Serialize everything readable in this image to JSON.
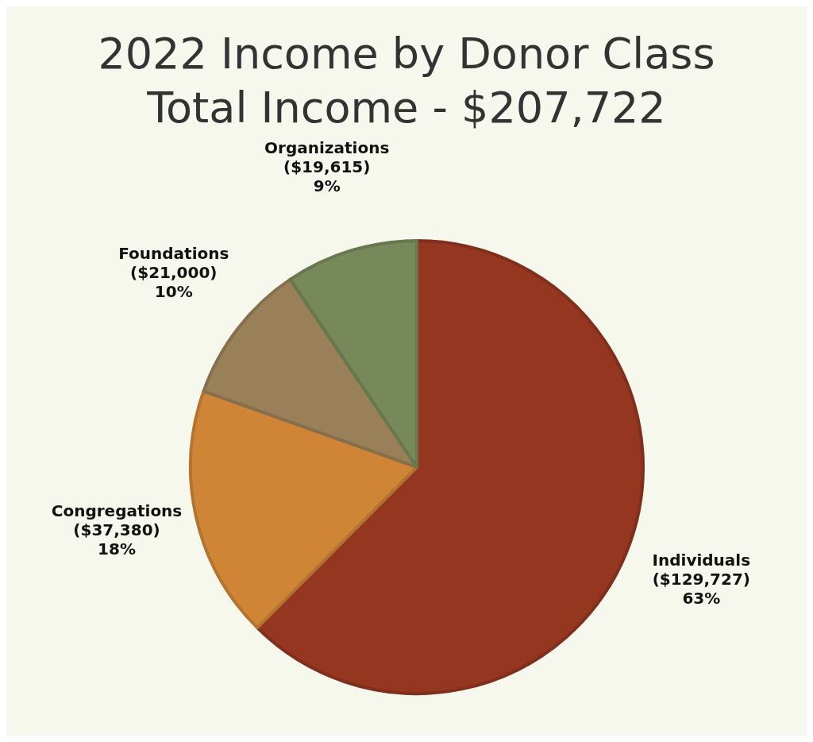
{
  "chart_data": {
    "type": "pie",
    "title": "2022 Income by Donor Class",
    "subtitle": "Total Income - $207,722",
    "categories": [
      "Individuals",
      "Congregations",
      "Foundations",
      "Organizations"
    ],
    "values": [
      129727,
      37380,
      21000,
      19615
    ],
    "colors": [
      "#943620",
      "#d08536",
      "#9a8059",
      "#77895a"
    ],
    "value_labels": [
      "($129,727)\n63%",
      "($37,380)\n18%",
      "($21,000)\n10%",
      "($19,615)\n9%"
    ]
  }
}
